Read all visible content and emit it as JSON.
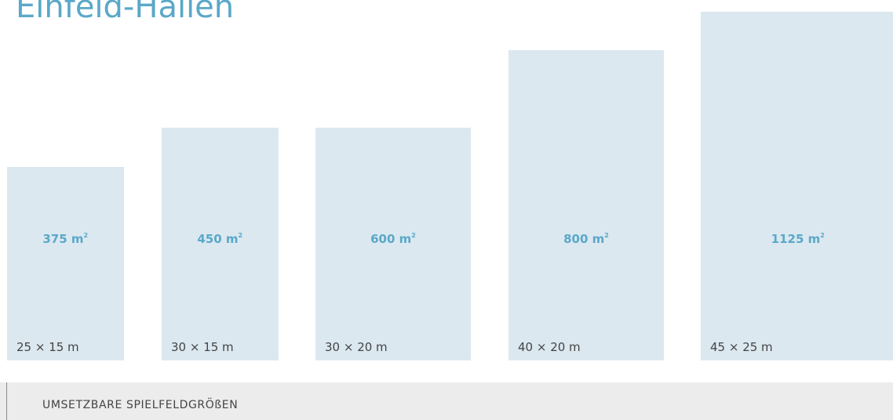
{
  "title": "Einfeld-Hallen",
  "colors": {
    "accent": "#5aa8c8",
    "field_fill": "#dbe8f0",
    "text": "#444444",
    "footer_bg": "#ececec"
  },
  "chart_data": {
    "type": "bar",
    "categories": [
      "25 × 15 m",
      "30 × 15 m",
      "30 × 20 m",
      "40 × 20 m",
      "45 × 25 m"
    ],
    "values": [
      375,
      450,
      600,
      800,
      1125
    ],
    "value_labels": [
      "375 m",
      "450 m",
      "600 m",
      "800 m",
      "1125 m"
    ],
    "unit_superscript": "2",
    "dimensions": [
      {
        "length": 25,
        "width": 15
      },
      {
        "length": 30,
        "width": 15
      },
      {
        "length": 30,
        "width": 20
      },
      {
        "length": 40,
        "width": 20
      },
      {
        "length": 45,
        "width": 25
      }
    ],
    "title": "Einfeld-Hallen",
    "xlabel": "",
    "ylabel": ""
  },
  "footer": {
    "label": "UMSETZBARE SPIELFELDGRÖßEN"
  }
}
